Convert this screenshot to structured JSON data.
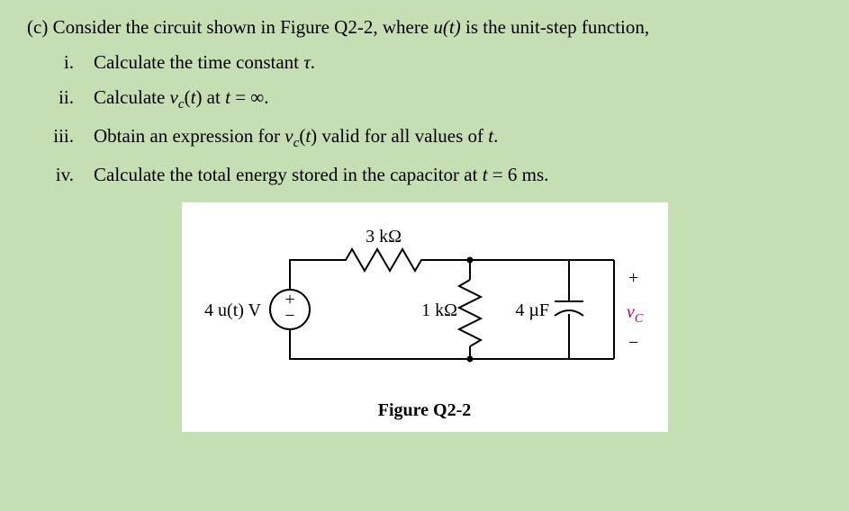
{
  "intro": {
    "part": "(c)",
    "text_before": "Consider the circuit shown in Figure Q2-2, where ",
    "ut": "u(t)",
    "text_after": " is the unit-step function,"
  },
  "items": [
    {
      "num": "i.",
      "html": "Calculate the time constant <span class=\"italic\">τ</span>."
    },
    {
      "num": "ii.",
      "html": "Calculate <span class=\"italic\">v<span class=\"sub\">c</span></span>(<span class=\"italic\">t</span>) at <span class=\"italic\">t</span> = ∞."
    },
    {
      "num": "iii.",
      "html": "Obtain an expression for <span class=\"italic\">v<span class=\"sub\">c</span></span>(<span class=\"italic\">t</span>) valid for all values of <span class=\"italic\">t</span>."
    },
    {
      "num": "iv.",
      "html": "Calculate the total energy stored in the capacitor at <span class=\"italic\">t</span> = 6 ms."
    }
  ],
  "circuit": {
    "r1_label": "3 kΩ",
    "r2_label": "1 kΩ",
    "cap_label": "4 µF",
    "src_label": "4 u(t) V",
    "plus": "+",
    "minus": "−",
    "src_plus": "+",
    "src_minus": "−",
    "vc": "v",
    "vc_sub": "C",
    "caption": "Figure Q2-2",
    "colors": {
      "wire": "#000000",
      "bg": "#ffffff",
      "vc": "#c00060"
    }
  }
}
